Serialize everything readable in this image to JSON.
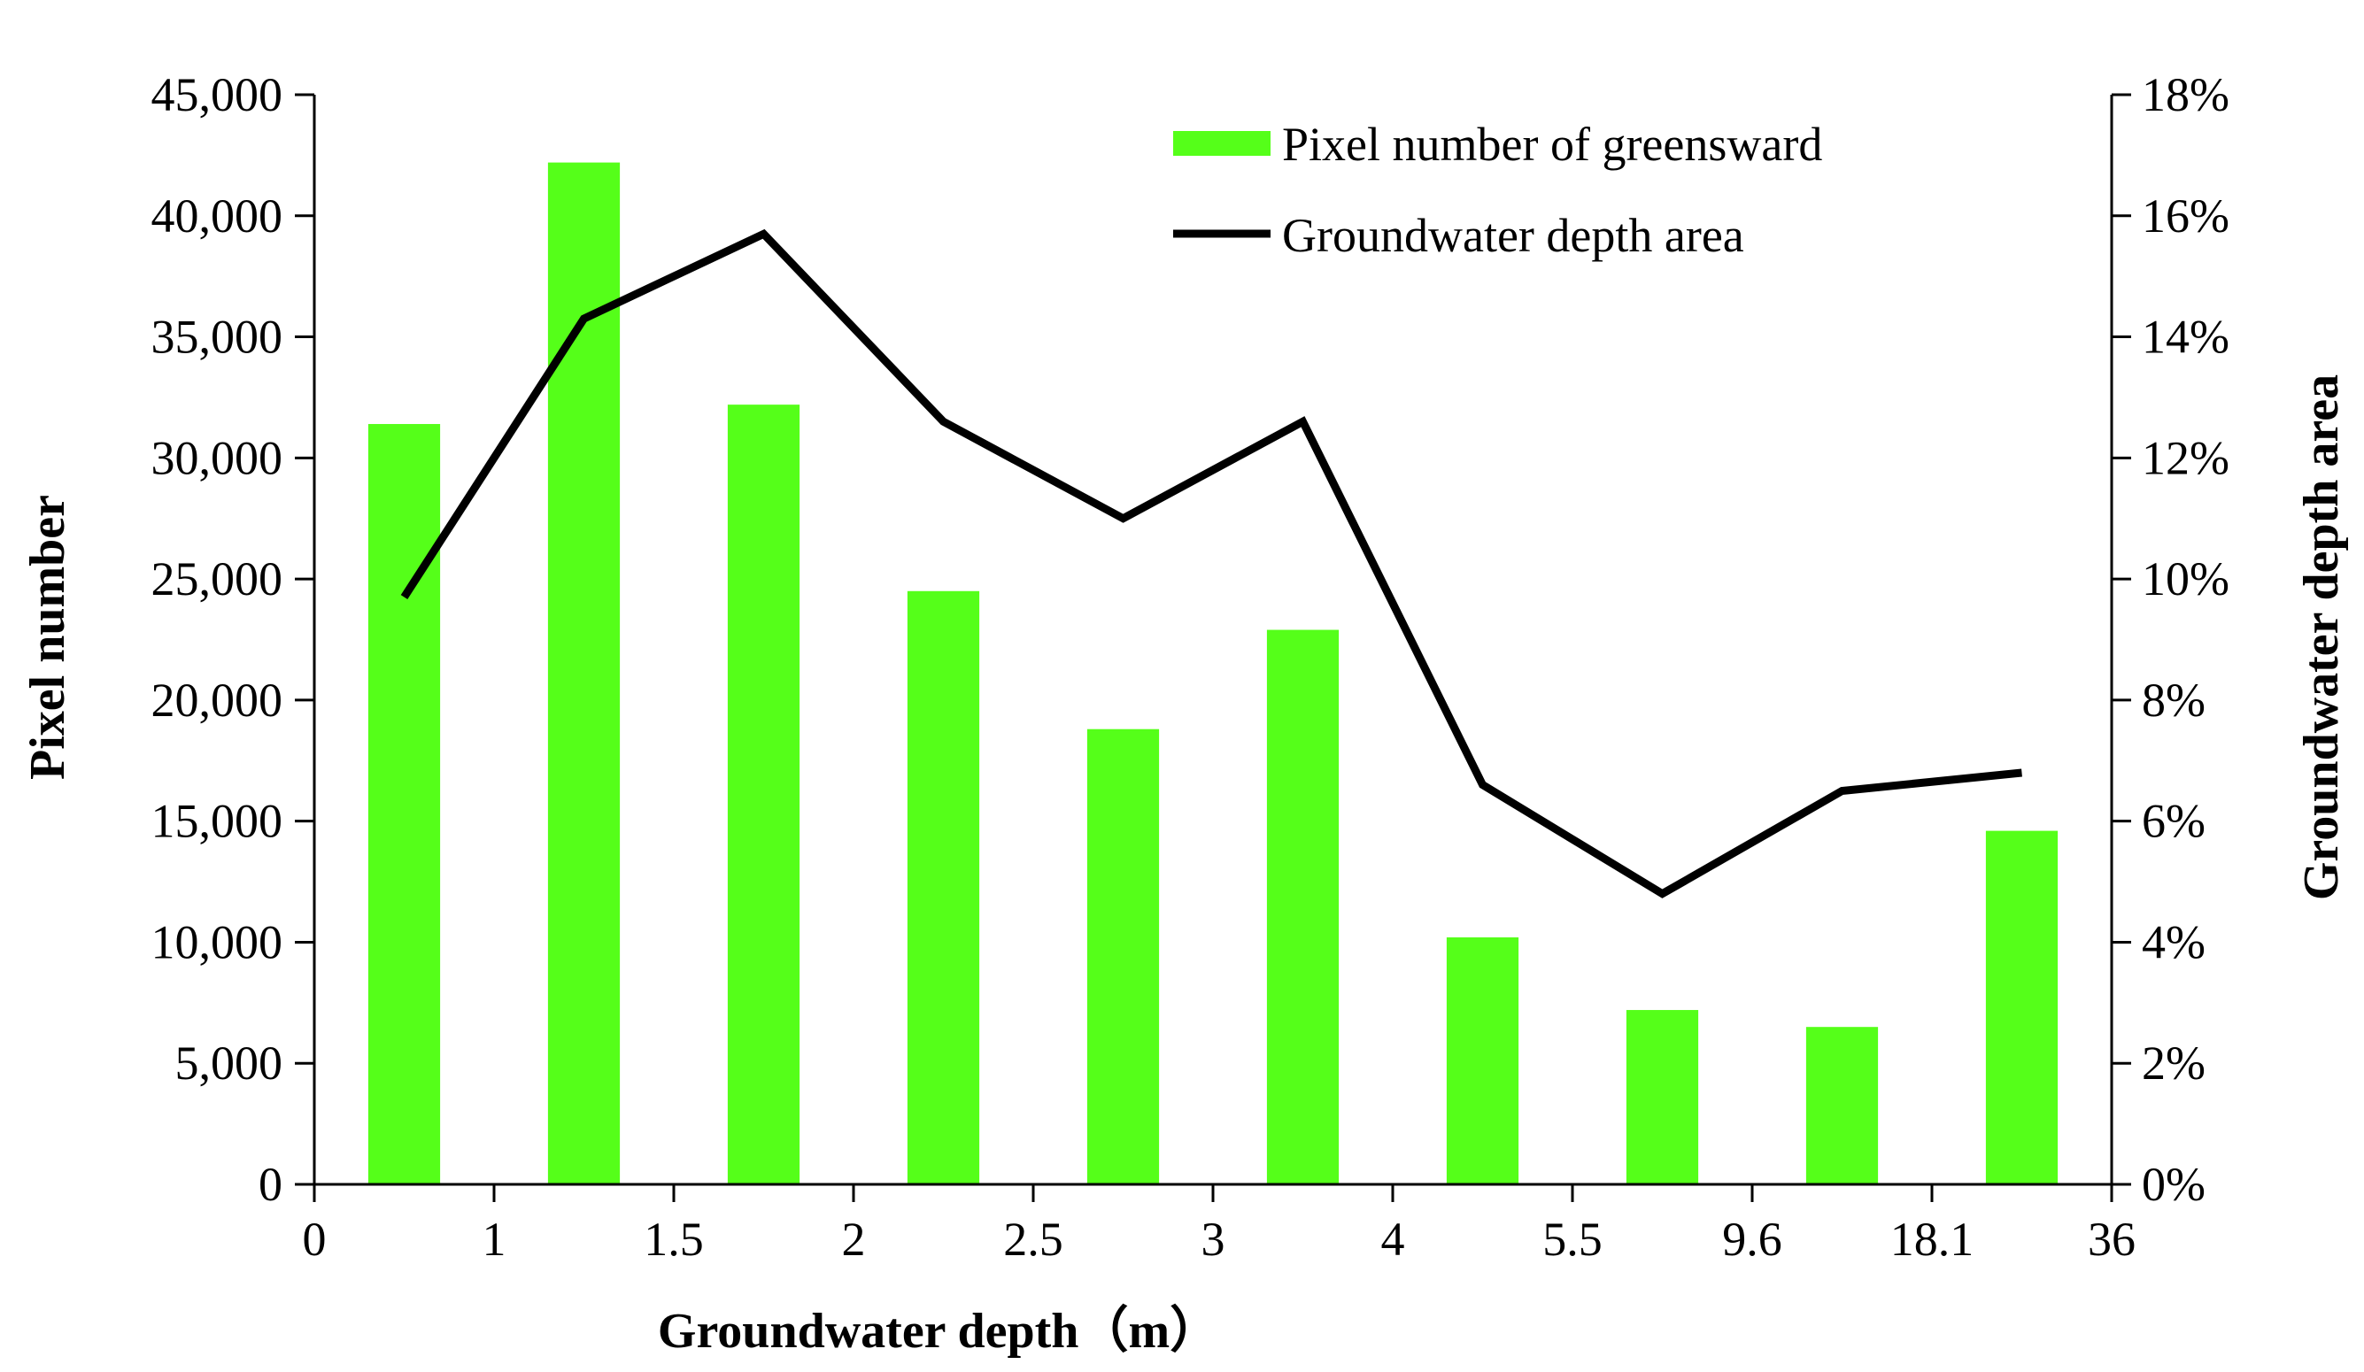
{
  "chart_data": {
    "type": "bar+line",
    "title": "",
    "xlabel": "Groundwater depth（m）",
    "ylabel_left": "Pixel number",
    "ylabel_right": "Groundwater depth area",
    "x_boundary_ticks": [
      "0",
      "1",
      "1.5",
      "2",
      "2.5",
      "3",
      "4",
      "5.5",
      "9.6",
      "18.1",
      "36"
    ],
    "y_left_ticks": [
      "0",
      "5,000",
      "10,000",
      "15,000",
      "20,000",
      "25,000",
      "30,000",
      "35,000",
      "40,000",
      "45,000"
    ],
    "y_right_ticks": [
      "0%",
      "2%",
      "4%",
      "6%",
      "8%",
      "10%",
      "12%",
      "14%",
      "16%",
      "18%"
    ],
    "ylim_left": [
      0,
      45000
    ],
    "ylim_right": [
      0,
      18
    ],
    "grid": false,
    "legend_position": "top-center",
    "series": [
      {
        "name": "Pixel number of greensward",
        "type": "bar",
        "axis": "left",
        "color": "#55ff19",
        "values": [
          31400,
          42200,
          32200,
          24500,
          18800,
          22900,
          10200,
          7200,
          6500,
          14600
        ]
      },
      {
        "name": "Groundwater depth area",
        "type": "line",
        "axis": "right",
        "color": "#000000",
        "unit": "%",
        "values": [
          9.7,
          14.3,
          15.7,
          12.6,
          11.0,
          12.6,
          6.6,
          4.8,
          6.5,
          6.8
        ]
      }
    ]
  }
}
